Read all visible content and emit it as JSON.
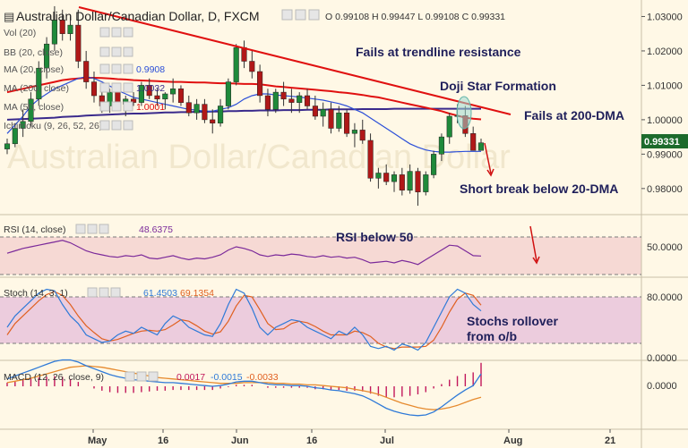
{
  "window": {
    "title": "Australian Dollar/Canadian Dollar, D, FXCM",
    "ohlc_text": "O 0.99108 H 0.99447 L 0.99108 C 0.99331",
    "current_price": "0.99331"
  },
  "main_panel": {
    "indicators": [
      {
        "label": "Vol (20)",
        "value": ""
      },
      {
        "label": "BB (20, close)",
        "value": ""
      },
      {
        "label": "MA (20, close)",
        "value": "0.9908",
        "color": "#2c4fd8"
      },
      {
        "label": "MA (200, close)",
        "value": "1.0032",
        "color": "#3a2a8c"
      },
      {
        "label": "MA (50, close)",
        "value": "1.0001",
        "color": "#e01010"
      },
      {
        "label": "Ichimoku (9, 26, 52, 26)",
        "value": ""
      }
    ],
    "price_axis": [
      "1.03000",
      "1.02000",
      "1.01000",
      "1.00000",
      "0.99000",
      "0.98000"
    ],
    "watermark": "Australian Dollar/Canadian Dollar"
  },
  "annotations": {
    "trendline": "Fails at trendline resistance",
    "doji": "Doji Star Formation",
    "dma200": "Fails at 200-DMA",
    "dma20": "Short break below 20-DMA",
    "rsi": "RSI below 50",
    "stochs": [
      "Stochs rollover",
      "from o/b"
    ]
  },
  "rsi_panel": {
    "label": "RSI (14, close)",
    "value": "48.6375",
    "axis": [
      "50.0000"
    ],
    "color": "#7b2a9a"
  },
  "stoch_panel": {
    "label": "Stoch (14, 3, 1)",
    "k": "61.4503",
    "d": "69.1354",
    "axis": [
      "80.0000",
      "0.0000"
    ],
    "k_color": "#2f7ad8",
    "d_color": "#e06020"
  },
  "macd_panel": {
    "label": "MACD (12, 26, close, 9)",
    "v1": "0.0017",
    "v2": "-0.0015",
    "v3": "-0.0033",
    "axis": [
      "0.0000"
    ],
    "hist_color": "#c2185b"
  },
  "x_axis": [
    "May",
    "16",
    "Jun",
    "16",
    "Jul",
    "Aug",
    "21"
  ],
  "chart_data": {
    "type": "candlestick",
    "title": "Australian Dollar/Canadian Dollar, D, FXCM",
    "ylim": [
      0.9745,
      1.0335
    ],
    "x_ticks": [
      "May",
      "16",
      "Jun",
      "16",
      "Jul",
      "Aug",
      "21"
    ],
    "candles": [
      {
        "o": 0.9915,
        "h": 0.9945,
        "l": 0.99,
        "c": 0.993
      },
      {
        "o": 0.993,
        "h": 0.999,
        "l": 0.992,
        "c": 0.9975
      },
      {
        "o": 0.9975,
        "h": 1.003,
        "l": 0.995,
        "c": 0.9995
      },
      {
        "o": 0.9995,
        "h": 1.008,
        "l": 0.998,
        "c": 1.006
      },
      {
        "o": 1.006,
        "h": 1.017,
        "l": 1.004,
        "c": 1.015
      },
      {
        "o": 1.015,
        "h": 1.024,
        "l": 1.012,
        "c": 1.022
      },
      {
        "o": 1.022,
        "h": 1.033,
        "l": 1.02,
        "c": 1.029
      },
      {
        "o": 1.029,
        "h": 1.032,
        "l": 1.023,
        "c": 1.025
      },
      {
        "o": 1.025,
        "h": 1.03,
        "l": 1.023,
        "c": 1.0275
      },
      {
        "o": 1.0275,
        "h": 1.032,
        "l": 1.015,
        "c": 1.017
      },
      {
        "o": 1.017,
        "h": 1.02,
        "l": 1.009,
        "c": 1.011
      },
      {
        "o": 1.011,
        "h": 1.014,
        "l": 1.005,
        "c": 1.007
      },
      {
        "o": 1.007,
        "h": 1.01,
        "l": 1.002,
        "c": 1.004
      },
      {
        "o": 1.004,
        "h": 1.009,
        "l": 1.002,
        "c": 1.008
      },
      {
        "o": 1.008,
        "h": 1.01,
        "l": 1.003,
        "c": 1.0045
      },
      {
        "o": 1.0045,
        "h": 1.007,
        "l": 1.001,
        "c": 1.006
      },
      {
        "o": 1.006,
        "h": 1.008,
        "l": 1.004,
        "c": 1.005
      },
      {
        "o": 1.005,
        "h": 1.011,
        "l": 1.004,
        "c": 1.01
      },
      {
        "o": 1.01,
        "h": 1.012,
        "l": 1.006,
        "c": 1.007
      },
      {
        "o": 1.007,
        "h": 1.009,
        "l": 1.004,
        "c": 1.006
      },
      {
        "o": 1.006,
        "h": 1.008,
        "l": 1.003,
        "c": 1.0075
      },
      {
        "o": 1.0075,
        "h": 1.012,
        "l": 1.005,
        "c": 1.009
      },
      {
        "o": 1.009,
        "h": 1.01,
        "l": 1.004,
        "c": 1.005
      },
      {
        "o": 1.005,
        "h": 1.007,
        "l": 1.001,
        "c": 1.002
      },
      {
        "o": 1.002,
        "h": 1.006,
        "l": 1.0,
        "c": 1.0045
      },
      {
        "o": 1.0045,
        "h": 1.006,
        "l": 0.999,
        "c": 1.0
      },
      {
        "o": 1.0,
        "h": 1.003,
        "l": 0.996,
        "c": 0.999
      },
      {
        "o": 0.999,
        "h": 1.006,
        "l": 0.998,
        "c": 1.004
      },
      {
        "o": 1.004,
        "h": 1.012,
        "l": 1.003,
        "c": 1.011
      },
      {
        "o": 1.011,
        "h": 1.022,
        "l": 1.01,
        "c": 1.021
      },
      {
        "o": 1.021,
        "h": 1.023,
        "l": 1.015,
        "c": 1.017
      },
      {
        "o": 1.017,
        "h": 1.02,
        "l": 1.012,
        "c": 1.014
      },
      {
        "o": 1.014,
        "h": 1.016,
        "l": 1.005,
        "c": 1.007
      },
      {
        "o": 1.007,
        "h": 1.009,
        "l": 1.001,
        "c": 1.003
      },
      {
        "o": 1.003,
        "h": 1.009,
        "l": 1.002,
        "c": 1.008
      },
      {
        "o": 1.008,
        "h": 1.011,
        "l": 1.004,
        "c": 1.006
      },
      {
        "o": 1.006,
        "h": 1.009,
        "l": 1.002,
        "c": 1.005
      },
      {
        "o": 1.005,
        "h": 1.008,
        "l": 1.002,
        "c": 1.007
      },
      {
        "o": 1.007,
        "h": 1.009,
        "l": 1.003,
        "c": 1.004
      },
      {
        "o": 1.004,
        "h": 1.007,
        "l": 1.0,
        "c": 1.001
      },
      {
        "o": 1.001,
        "h": 1.005,
        "l": 0.998,
        "c": 1.003
      },
      {
        "o": 1.003,
        "h": 1.005,
        "l": 0.996,
        "c": 0.9975
      },
      {
        "o": 0.9975,
        "h": 1.004,
        "l": 0.9965,
        "c": 1.002
      },
      {
        "o": 1.002,
        "h": 1.003,
        "l": 0.995,
        "c": 0.996
      },
      {
        "o": 0.996,
        "h": 0.999,
        "l": 0.992,
        "c": 0.997
      },
      {
        "o": 0.997,
        "h": 1.0,
        "l": 0.993,
        "c": 0.994
      },
      {
        "o": 0.994,
        "h": 0.996,
        "l": 0.982,
        "c": 0.983
      },
      {
        "o": 0.983,
        "h": 0.986,
        "l": 0.98,
        "c": 0.9845
      },
      {
        "o": 0.9845,
        "h": 0.987,
        "l": 0.981,
        "c": 0.982
      },
      {
        "o": 0.982,
        "h": 0.985,
        "l": 0.979,
        "c": 0.984
      },
      {
        "o": 0.984,
        "h": 0.986,
        "l": 0.978,
        "c": 0.9795
      },
      {
        "o": 0.9795,
        "h": 0.987,
        "l": 0.9785,
        "c": 0.985
      },
      {
        "o": 0.985,
        "h": 0.986,
        "l": 0.975,
        "c": 0.979
      },
      {
        "o": 0.979,
        "h": 0.985,
        "l": 0.978,
        "c": 0.984
      },
      {
        "o": 0.984,
        "h": 0.991,
        "l": 0.983,
        "c": 0.99
      },
      {
        "o": 0.99,
        "h": 0.996,
        "l": 0.988,
        "c": 0.995
      },
      {
        "o": 0.995,
        "h": 1.002,
        "l": 0.993,
        "c": 1.001
      },
      {
        "o": 1.001,
        "h": 1.0045,
        "l": 0.999,
        "c": 1.0012
      },
      {
        "o": 1.0012,
        "h": 1.004,
        "l": 0.995,
        "c": 0.996
      },
      {
        "o": 0.996,
        "h": 0.998,
        "l": 0.991,
        "c": 0.9911
      },
      {
        "o": 0.9911,
        "h": 0.9945,
        "l": 0.9911,
        "c": 0.9933
      }
    ],
    "series": [
      {
        "name": "MA (20, close)",
        "values": [
          0.996,
          0.9985,
          1.001,
          1.004,
          1.006,
          1.0075,
          1.009,
          1.01,
          1.011,
          1.012,
          1.0125,
          1.012,
          1.011,
          1.0098,
          1.0085,
          1.0075,
          1.0065,
          1.006,
          1.0055,
          1.005,
          1.0045,
          1.004,
          1.0035,
          1.003,
          1.0028,
          1.0025,
          1.0025,
          1.003,
          1.0035,
          1.0045,
          1.006,
          1.007,
          1.0075,
          1.0075,
          1.0072,
          1.007,
          1.0068,
          1.0066,
          1.0063,
          1.006,
          1.0057,
          1.0052,
          1.0047,
          1.004,
          1.003,
          1.002,
          1.0005,
          0.999,
          0.9975,
          0.996,
          0.9945,
          0.993,
          0.992,
          0.9912,
          0.9908,
          0.9906,
          0.9906,
          0.9907,
          0.9908,
          0.9908,
          0.9908
        ]
      },
      {
        "name": "MA (50, close)",
        "values": [
          1.008,
          1.0085,
          1.009,
          1.0095,
          1.01,
          1.0105,
          1.011,
          1.0115,
          1.0118,
          1.012,
          1.0122,
          1.0122,
          1.0121,
          1.012,
          1.0118,
          1.0117,
          1.0115,
          1.0114,
          1.0113,
          1.0112,
          1.0111,
          1.011,
          1.011,
          1.0109,
          1.0108,
          1.0108,
          1.0107,
          1.0106,
          1.0106,
          1.0105,
          1.0104,
          1.0104,
          1.0103,
          1.01,
          1.0097,
          1.0095,
          1.0093,
          1.0091,
          1.0089,
          1.0087,
          1.0085,
          1.0083,
          1.008,
          1.0078,
          1.0075,
          1.0072,
          1.0068,
          1.0065,
          1.006,
          1.0055,
          1.005,
          1.0045,
          1.004,
          1.0035,
          1.003,
          1.0025,
          1.0018,
          1.0012,
          1.0006,
          1.0003,
          1.0001
        ]
      },
      {
        "name": "MA (200, close)",
        "values": [
          1.0,
          1.0001,
          1.0002,
          1.0003,
          1.0004,
          1.0005,
          1.0006,
          1.0008,
          1.0009,
          1.001,
          1.0012,
          1.0013,
          1.0014,
          1.0015,
          1.0016,
          1.0017,
          1.0018,
          1.0018,
          1.0019,
          1.002,
          1.0021,
          1.0021,
          1.0022,
          1.0022,
          1.0023,
          1.0023,
          1.0024,
          1.0024,
          1.0025,
          1.0025,
          1.0026,
          1.0026,
          1.0027,
          1.0027,
          1.0027,
          1.0028,
          1.0028,
          1.0028,
          1.0029,
          1.0029,
          1.0029,
          1.003,
          1.003,
          1.003,
          1.003,
          1.0031,
          1.0031,
          1.0031,
          1.0031,
          1.0032,
          1.0032,
          1.0032,
          1.0032,
          1.0032,
          1.0032,
          1.0032,
          1.0032,
          1.0032,
          1.0032,
          1.0032,
          1.0032
        ]
      },
      {
        "name": "RSI (14, close)",
        "values": [
          52,
          55,
          58,
          60,
          62,
          64,
          66,
          68,
          65,
          60,
          55,
          52,
          50,
          48,
          47,
          49,
          48,
          50,
          46,
          45,
          47,
          49,
          46,
          44,
          46,
          45,
          47,
          50,
          56,
          60,
          58,
          55,
          50,
          48,
          50,
          49,
          51,
          50,
          48,
          47,
          49,
          47,
          48,
          46,
          47,
          44,
          40,
          41,
          42,
          40,
          43,
          41,
          38,
          44,
          50,
          56,
          62,
          61,
          55,
          49,
          48.6
        ]
      },
      {
        "name": "Stoch %K",
        "values": [
          40,
          55,
          65,
          75,
          85,
          90,
          88,
          70,
          55,
          45,
          30,
          25,
          20,
          22,
          30,
          35,
          32,
          40,
          35,
          30,
          45,
          55,
          50,
          40,
          35,
          30,
          28,
          45,
          70,
          90,
          85,
          65,
          40,
          30,
          40,
          45,
          50,
          48,
          40,
          35,
          30,
          25,
          35,
          30,
          40,
          30,
          15,
          12,
          15,
          10,
          18,
          15,
          10,
          20,
          40,
          60,
          80,
          90,
          85,
          70,
          61.5
        ]
      },
      {
        "name": "Stoch %D",
        "values": [
          30,
          45,
          55,
          65,
          75,
          83,
          87,
          82,
          70,
          55,
          42,
          33,
          25,
          22,
          24,
          28,
          32,
          35,
          36,
          35,
          37,
          43,
          50,
          48,
          42,
          35,
          31,
          34,
          48,
          68,
          82,
          80,
          63,
          45,
          37,
          38,
          45,
          48,
          46,
          41,
          35,
          30,
          30,
          30,
          35,
          33,
          28,
          19,
          14,
          12,
          14,
          14,
          14,
          15,
          23,
          40,
          60,
          77,
          85,
          82,
          69.1
        ]
      },
      {
        "name": "MACD",
        "values": [
          0.001,
          0.0014,
          0.0018,
          0.0022,
          0.0026,
          0.003,
          0.0034,
          0.0036,
          0.0036,
          0.0033,
          0.0028,
          0.0024,
          0.002,
          0.0016,
          0.0013,
          0.0011,
          0.0009,
          0.0008,
          0.0007,
          0.0006,
          0.0005,
          0.0005,
          0.0004,
          0.0003,
          0.0002,
          0.0001,
          0.0,
          0.0001,
          0.0003,
          0.0006,
          0.0007,
          0.0007,
          0.0005,
          0.0003,
          0.0002,
          0.0002,
          0.0001,
          0.0001,
          0.0,
          -0.0002,
          -0.0003,
          -0.0005,
          -0.0006,
          -0.0008,
          -0.001,
          -0.0013,
          -0.0018,
          -0.0024,
          -0.003,
          -0.0034,
          -0.0037,
          -0.0039,
          -0.004,
          -0.0039,
          -0.0035,
          -0.0028,
          -0.002,
          -0.0012,
          -0.0005,
          0.0001,
          0.0017
        ]
      },
      {
        "name": "Signal",
        "values": [
          0.0005,
          0.0007,
          0.0009,
          0.0011,
          0.0014,
          0.0017,
          0.002,
          0.0023,
          0.0026,
          0.0027,
          0.0028,
          0.0027,
          0.0026,
          0.0024,
          0.0022,
          0.002,
          0.0018,
          0.0016,
          0.0014,
          0.0012,
          0.0011,
          0.001,
          0.0009,
          0.0008,
          0.0007,
          0.0006,
          0.0005,
          0.0004,
          0.0004,
          0.0004,
          0.0005,
          0.0005,
          0.0005,
          0.0005,
          0.0004,
          0.0004,
          0.0003,
          0.0003,
          0.0002,
          0.0002,
          0.0001,
          0.0,
          -0.0001,
          -0.0002,
          -0.0004,
          -0.0006,
          -0.0008,
          -0.0011,
          -0.0015,
          -0.0019,
          -0.0023,
          -0.0026,
          -0.0029,
          -0.0031,
          -0.0032,
          -0.0031,
          -0.0029,
          -0.0026,
          -0.0022,
          -0.0018,
          -0.0015
        ]
      }
    ]
  }
}
